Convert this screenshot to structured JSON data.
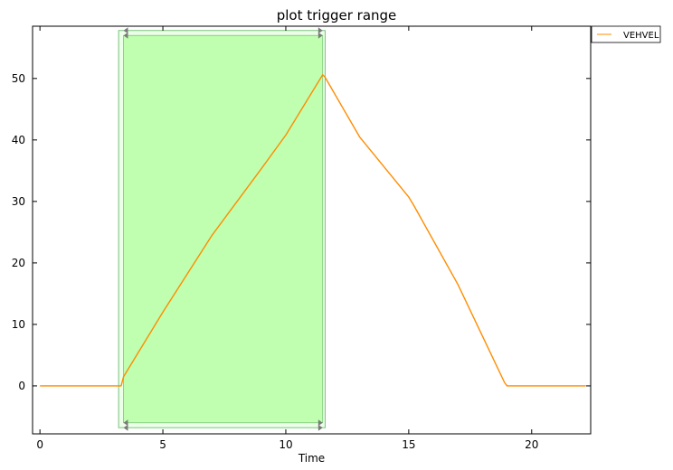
{
  "chart_data": {
    "type": "line",
    "title": "plot trigger range",
    "xlabel": "Time",
    "ylabel": "",
    "xlim": [
      -0.3,
      22.4
    ],
    "ylim": [
      -7.8,
      58.5
    ],
    "xticks": [
      0,
      5,
      10,
      15,
      20
    ],
    "yticks": [
      0,
      10,
      20,
      30,
      40,
      50
    ],
    "grid": false,
    "legend": "outside-top-right",
    "series": [
      {
        "name": "VEHVEL",
        "color": "#ff8c00",
        "x": [
          0,
          3.3,
          3.4,
          5,
          7,
          9,
          10,
          11.5,
          11.6,
          13,
          15,
          15.2,
          17,
          18.9,
          19,
          22.2
        ],
        "y": [
          0,
          0,
          1.5,
          12,
          24.5,
          35.3,
          40.8,
          50.6,
          50.2,
          40.5,
          30.7,
          29.4,
          16.5,
          0.5,
          0,
          0
        ]
      }
    ],
    "trigger_range": {
      "outer": {
        "x0": 3.2,
        "x1": 11.6,
        "y0": -6.8,
        "y1": 57.8
      },
      "inner": {
        "x0": 3.4,
        "x1": 11.5,
        "y0": -6.0,
        "y1": 57.0
      },
      "fill_color": "#bfffaf",
      "outer_fill_color": "#ecffe8",
      "edge_color": "#7cc47c",
      "marker_color": "#7a7a7a"
    }
  }
}
